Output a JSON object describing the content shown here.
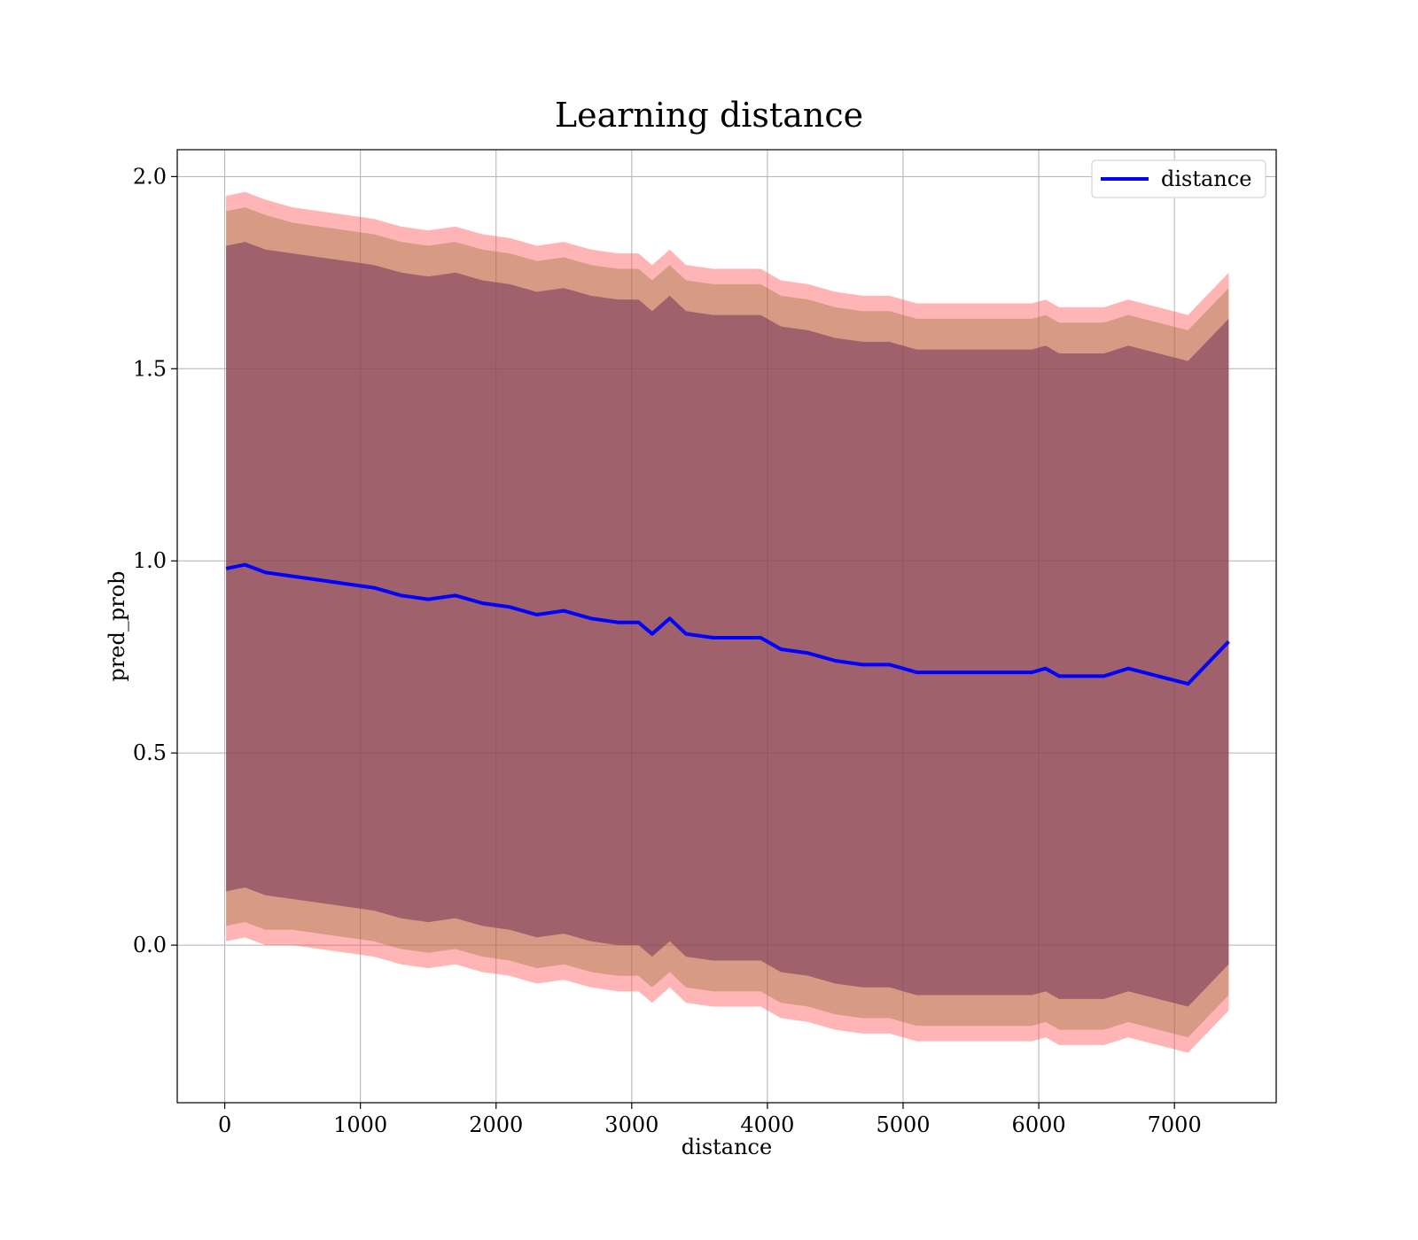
{
  "chart_data": {
    "type": "line",
    "title": "Learning distance",
    "xlabel": "distance",
    "ylabel": "pred_prob",
    "xlim": [
      -350,
      7750
    ],
    "ylim": [
      -0.41,
      2.07
    ],
    "xticks": [
      0,
      1000,
      2000,
      3000,
      4000,
      5000,
      6000,
      7000
    ],
    "yticks": [
      0.0,
      0.5,
      1.0,
      1.5,
      2.0
    ],
    "xtick_labels": [
      "0",
      "1000",
      "2000",
      "3000",
      "4000",
      "5000",
      "6000",
      "7000"
    ],
    "ytick_labels": [
      "0.0",
      "0.5",
      "1.0",
      "1.5",
      "2.0"
    ],
    "grid": true,
    "legend": {
      "placement": "top-right",
      "entries": [
        "distance"
      ]
    },
    "series": [
      {
        "name": "distance",
        "color": "#0000ff",
        "x": [
          10,
          150,
          300,
          500,
          700,
          900,
          1100,
          1300,
          1500,
          1700,
          1900,
          2100,
          2300,
          2500,
          2700,
          2900,
          3050,
          3150,
          3280,
          3400,
          3600,
          3800,
          3950,
          4100,
          4300,
          4500,
          4700,
          4900,
          5000,
          5100,
          5200,
          5400,
          5600,
          5800,
          5950,
          6050,
          6150,
          6480,
          6660,
          7100,
          7400
        ],
        "y": [
          0.98,
          0.99,
          0.97,
          0.96,
          0.95,
          0.94,
          0.93,
          0.91,
          0.9,
          0.91,
          0.89,
          0.88,
          0.86,
          0.87,
          0.85,
          0.84,
          0.84,
          0.81,
          0.85,
          0.81,
          0.8,
          0.8,
          0.8,
          0.77,
          0.76,
          0.74,
          0.73,
          0.73,
          0.72,
          0.71,
          0.71,
          0.71,
          0.71,
          0.71,
          0.71,
          0.72,
          0.7,
          0.7,
          0.72,
          0.68,
          0.79
        ]
      }
    ],
    "bands": [
      {
        "label": "outer band",
        "color": "#ff5a5a",
        "opacity": 0.45,
        "half_width": [
          0.97,
          0.97,
          0.97,
          0.96,
          0.96,
          0.96,
          0.96,
          0.96,
          0.96,
          0.96,
          0.96,
          0.96,
          0.96,
          0.96,
          0.96,
          0.96,
          0.96,
          0.96,
          0.96,
          0.96,
          0.96,
          0.96,
          0.96,
          0.96,
          0.96,
          0.96,
          0.96,
          0.96,
          0.96,
          0.96,
          0.96,
          0.96,
          0.96,
          0.96,
          0.96,
          0.96,
          0.96,
          0.96,
          0.96,
          0.96,
          0.96
        ]
      },
      {
        "label": "middle band",
        "color": "#8b6b2c",
        "opacity": 0.35,
        "half_width": [
          0.93,
          0.93,
          0.93,
          0.92,
          0.92,
          0.92,
          0.92,
          0.92,
          0.92,
          0.92,
          0.92,
          0.92,
          0.92,
          0.92,
          0.92,
          0.92,
          0.92,
          0.92,
          0.92,
          0.92,
          0.92,
          0.92,
          0.92,
          0.92,
          0.92,
          0.92,
          0.92,
          0.92,
          0.92,
          0.92,
          0.92,
          0.92,
          0.92,
          0.92,
          0.92,
          0.92,
          0.92,
          0.92,
          0.92,
          0.92,
          0.92
        ]
      },
      {
        "label": "inner band",
        "color": "#7a3a5a",
        "opacity": 0.6,
        "half_width": [
          0.84,
          0.84,
          0.84,
          0.84,
          0.84,
          0.84,
          0.84,
          0.84,
          0.84,
          0.84,
          0.84,
          0.84,
          0.84,
          0.84,
          0.84,
          0.84,
          0.84,
          0.84,
          0.84,
          0.84,
          0.84,
          0.84,
          0.84,
          0.84,
          0.84,
          0.84,
          0.84,
          0.84,
          0.84,
          0.84,
          0.84,
          0.84,
          0.84,
          0.84,
          0.84,
          0.84,
          0.84,
          0.84,
          0.84,
          0.84,
          0.84
        ]
      }
    ]
  }
}
